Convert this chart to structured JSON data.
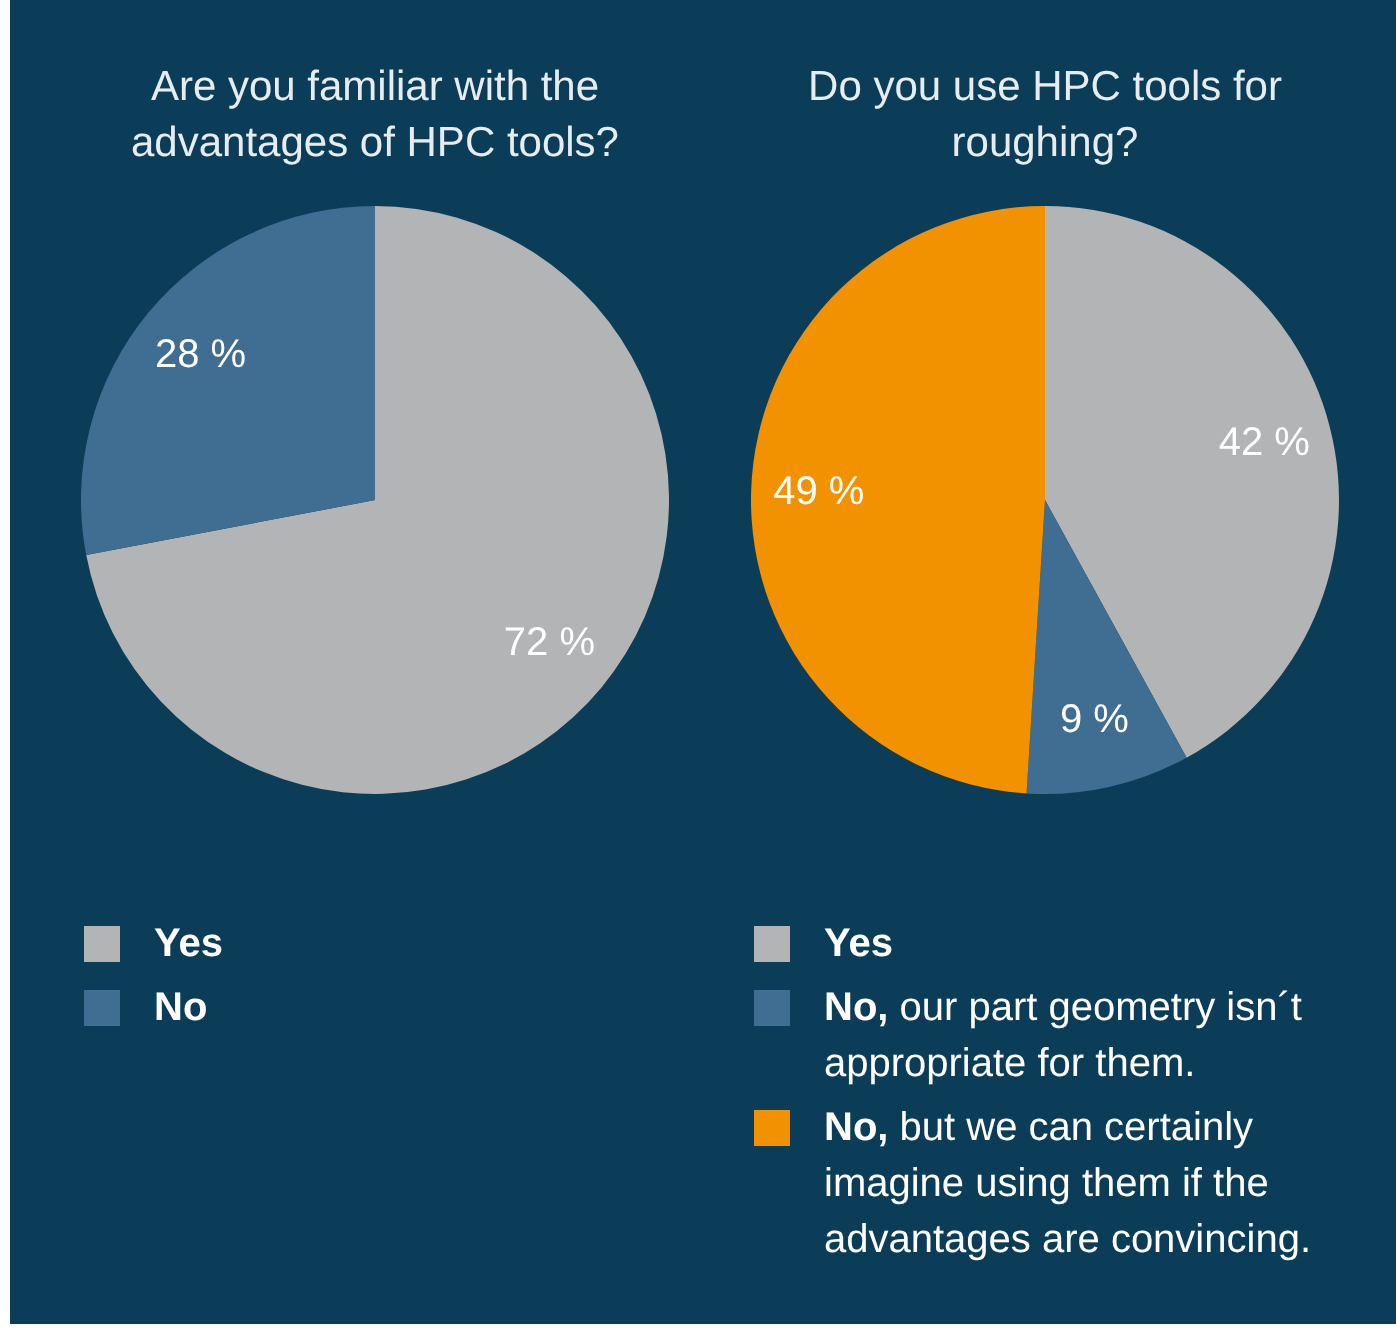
{
  "chart_data": [
    {
      "type": "pie",
      "title": "Are you familiar with the advantages of HPC tools?",
      "categories": [
        "Yes",
        "No"
      ],
      "values": [
        72,
        28
      ],
      "colors": [
        "#b2b4b6",
        "#3f6e92"
      ],
      "value_labels": [
        "72 %",
        "28 %"
      ],
      "legend": "bottom"
    },
    {
      "type": "pie",
      "title": "Do you use HPC tools for roughing?",
      "categories": [
        "Yes",
        "No, our part geometry isn´t appropriate for them.",
        "No, but we can certainly imagine using them if the advantages are convincing."
      ],
      "values": [
        42,
        9,
        49
      ],
      "colors": [
        "#b2b4b6",
        "#3f6e92",
        "#f39200"
      ],
      "value_labels": [
        "42 %",
        "9 %",
        "49 %"
      ],
      "legend": "bottom"
    }
  ]
}
